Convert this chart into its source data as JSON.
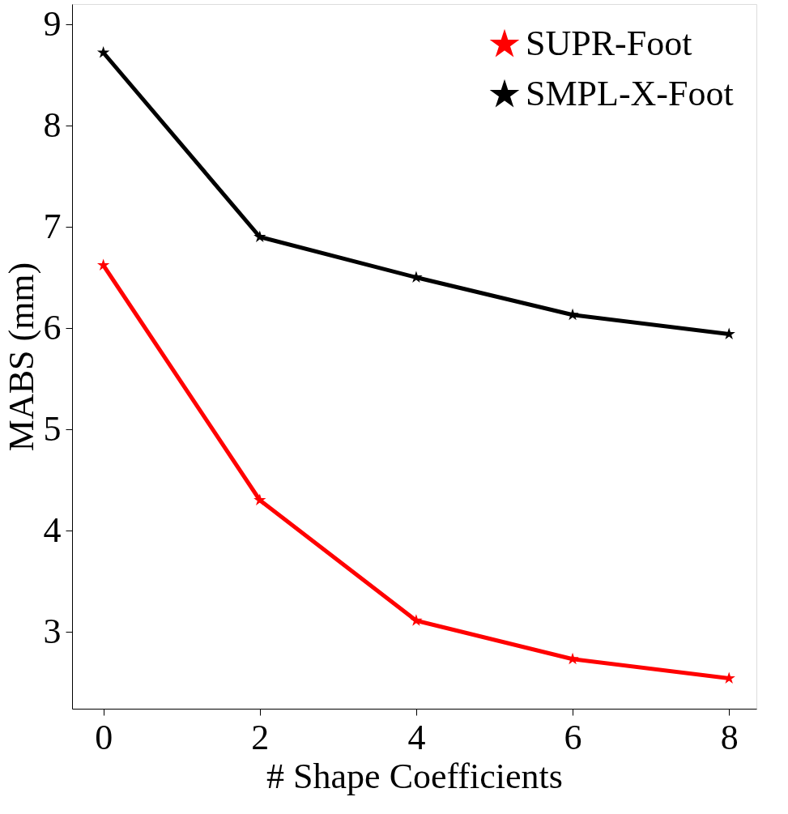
{
  "chart_data": {
    "type": "line",
    "xlabel": "# Shape Coefficients",
    "ylabel": "MABS (mm)",
    "x": [
      0,
      2,
      4,
      6,
      8
    ],
    "series": [
      {
        "name": "SUPR-Foot",
        "color": "#ff0000",
        "values": [
          6.62,
          4.3,
          3.11,
          2.73,
          2.54
        ]
      },
      {
        "name": "SMPL-X-Foot",
        "color": "#000000",
        "values": [
          8.72,
          6.9,
          6.5,
          6.13,
          5.94
        ]
      }
    ],
    "xlim": [
      -0.4,
      8.35
    ],
    "xticks": [
      0,
      2,
      4,
      6,
      8
    ],
    "ylim": [
      2.24,
      9.2
    ],
    "yticks": [
      3,
      4,
      5,
      6,
      7,
      8,
      9
    ],
    "marker": "star",
    "line_style": "solid",
    "legend": "top right",
    "grid": false
  }
}
